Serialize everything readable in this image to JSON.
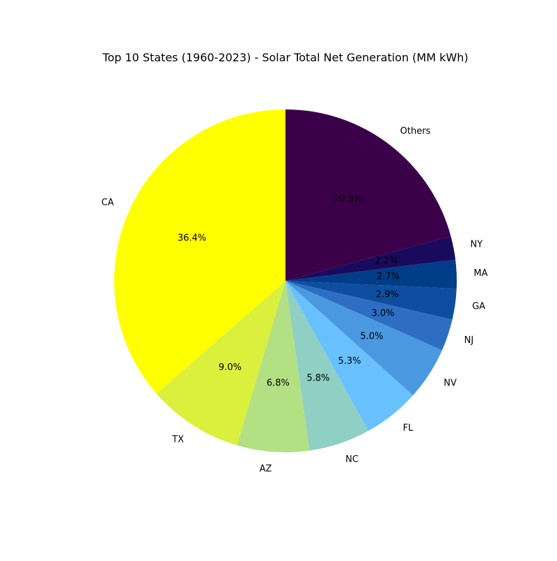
{
  "chart_data": {
    "type": "pie",
    "title": "Top 10 States (1960-2023) - Solar Total Net Generation (MM kWh)",
    "start_angle_deg": 90,
    "direction": "counterclockwise",
    "slices": [
      {
        "label": "CA",
        "value": 36.4,
        "pct_label": "36.4%",
        "color": "#ffff00"
      },
      {
        "label": "TX",
        "value": 9.0,
        "pct_label": "9.0%",
        "color": "#daf03c"
      },
      {
        "label": "AZ",
        "value": 6.8,
        "pct_label": "6.8%",
        "color": "#b3e083"
      },
      {
        "label": "NC",
        "value": 5.8,
        "pct_label": "5.8%",
        "color": "#8fcfc4"
      },
      {
        "label": "FL",
        "value": 5.3,
        "pct_label": "5.3%",
        "color": "#68c0ff"
      },
      {
        "label": "NV",
        "value": 5.0,
        "pct_label": "5.0%",
        "color": "#4a99e0"
      },
      {
        "label": "NJ",
        "value": 3.0,
        "pct_label": "3.0%",
        "color": "#2e6ec2"
      },
      {
        "label": "GA",
        "value": 2.9,
        "pct_label": "2.9%",
        "color": "#0e4ea0"
      },
      {
        "label": "MA",
        "value": 2.7,
        "pct_label": "2.7%",
        "color": "#003c88"
      },
      {
        "label": "NY",
        "value": 2.2,
        "pct_label": "2.2%",
        "color": "#1a0a5e"
      },
      {
        "label": "Others",
        "value": 20.8,
        "pct_label": "20.8%",
        "color": "#3b004a"
      }
    ]
  }
}
